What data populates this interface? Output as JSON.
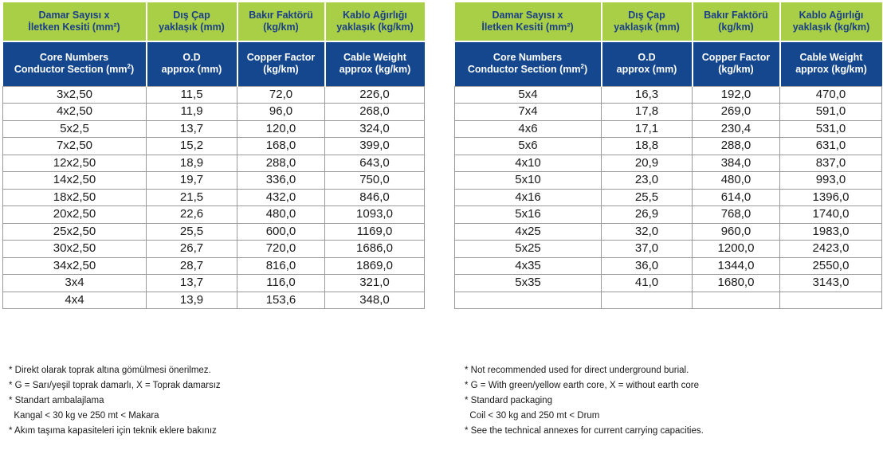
{
  "header": {
    "tr": [
      "Damar Sayısı x|İletken Kesiti (mm²)",
      "Dış Çap|yaklaşık (mm)",
      "Bakır Faktörü|(kg/km)",
      "Kablo Ağırlığı|yaklaşık (kg/km)"
    ],
    "en_1": [
      "Core Numbers",
      "O.D",
      "Copper Factor",
      "Cable Weight"
    ],
    "en_2": [
      "Conductor Section (mm",
      "approx (mm)",
      "(kg/km)",
      "approx (kg/km)"
    ],
    "sup": "2",
    "close": ")"
  },
  "left_rows": [
    [
      "3x2,50",
      "11,5",
      "72,0",
      "226,0"
    ],
    [
      "4x2,50",
      "11,9",
      "96,0",
      "268,0"
    ],
    [
      "5x2,5",
      "13,7",
      "120,0",
      "324,0"
    ],
    [
      "7x2,50",
      "15,2",
      "168,0",
      "399,0"
    ],
    [
      "12x2,50",
      "18,9",
      "288,0",
      "643,0"
    ],
    [
      "14x2,50",
      "19,7",
      "336,0",
      "750,0"
    ],
    [
      "18x2,50",
      "21,5",
      "432,0",
      "846,0"
    ],
    [
      "20x2,50",
      "22,6",
      "480,0",
      "1093,0"
    ],
    [
      "25x2,50",
      "25,5",
      "600,0",
      "1169,0"
    ],
    [
      "30x2,50",
      "26,7",
      "720,0",
      "1686,0"
    ],
    [
      "34x2,50",
      "28,7",
      "816,0",
      "1869,0"
    ],
    [
      "3x4",
      "13,7",
      "116,0",
      "321,0"
    ],
    [
      "4x4",
      "13,9",
      "153,6",
      "348,0"
    ]
  ],
  "right_rows": [
    [
      "5x4",
      "16,3",
      "192,0",
      "470,0"
    ],
    [
      "7x4",
      "17,8",
      "269,0",
      "591,0"
    ],
    [
      "4x6",
      "17,1",
      "230,4",
      "531,0"
    ],
    [
      "5x6",
      "18,8",
      "288,0",
      "631,0"
    ],
    [
      "4x10",
      "20,9",
      "384,0",
      "837,0"
    ],
    [
      "5x10",
      "23,0",
      "480,0",
      "993,0"
    ],
    [
      "4x16",
      "25,5",
      "614,0",
      "1396,0"
    ],
    [
      "5x16",
      "26,9",
      "768,0",
      "1740,0"
    ],
    [
      "4x25",
      "32,0",
      "960,0",
      "1983,0"
    ],
    [
      "5x25",
      "37,0",
      "1200,0",
      "2423,0"
    ],
    [
      "4x35",
      "36,0",
      "1344,0",
      "2550,0"
    ],
    [
      "5x35",
      "41,0",
      "1680,0",
      "3143,0"
    ],
    [
      "",
      "",
      "",
      ""
    ]
  ],
  "notes_tr": [
    "* Direkt olarak toprak altına gömülmesi önerilmez.",
    "* G = Sarı/yeşil toprak damarlı, X = Toprak damarsız",
    "* Standart ambalajlama",
    "  Kangal < 30 kg ve 250 mt < Makara",
    "* Akım taşıma kapasiteleri için teknik eklere bakınız"
  ],
  "notes_en": [
    "* Not recommended used for direct underground burial.",
    "* G = With green/yellow earth core, X = without earth core",
    "* Standard packaging",
    "  Coil < 30 kg and 250 mt < Drum",
    "* See the technical annexes for current carrying capacities."
  ],
  "colors": {
    "header_green": "#a8cf45",
    "header_blue": "#15478e",
    "header_text_blue": "#1b3f8a"
  }
}
